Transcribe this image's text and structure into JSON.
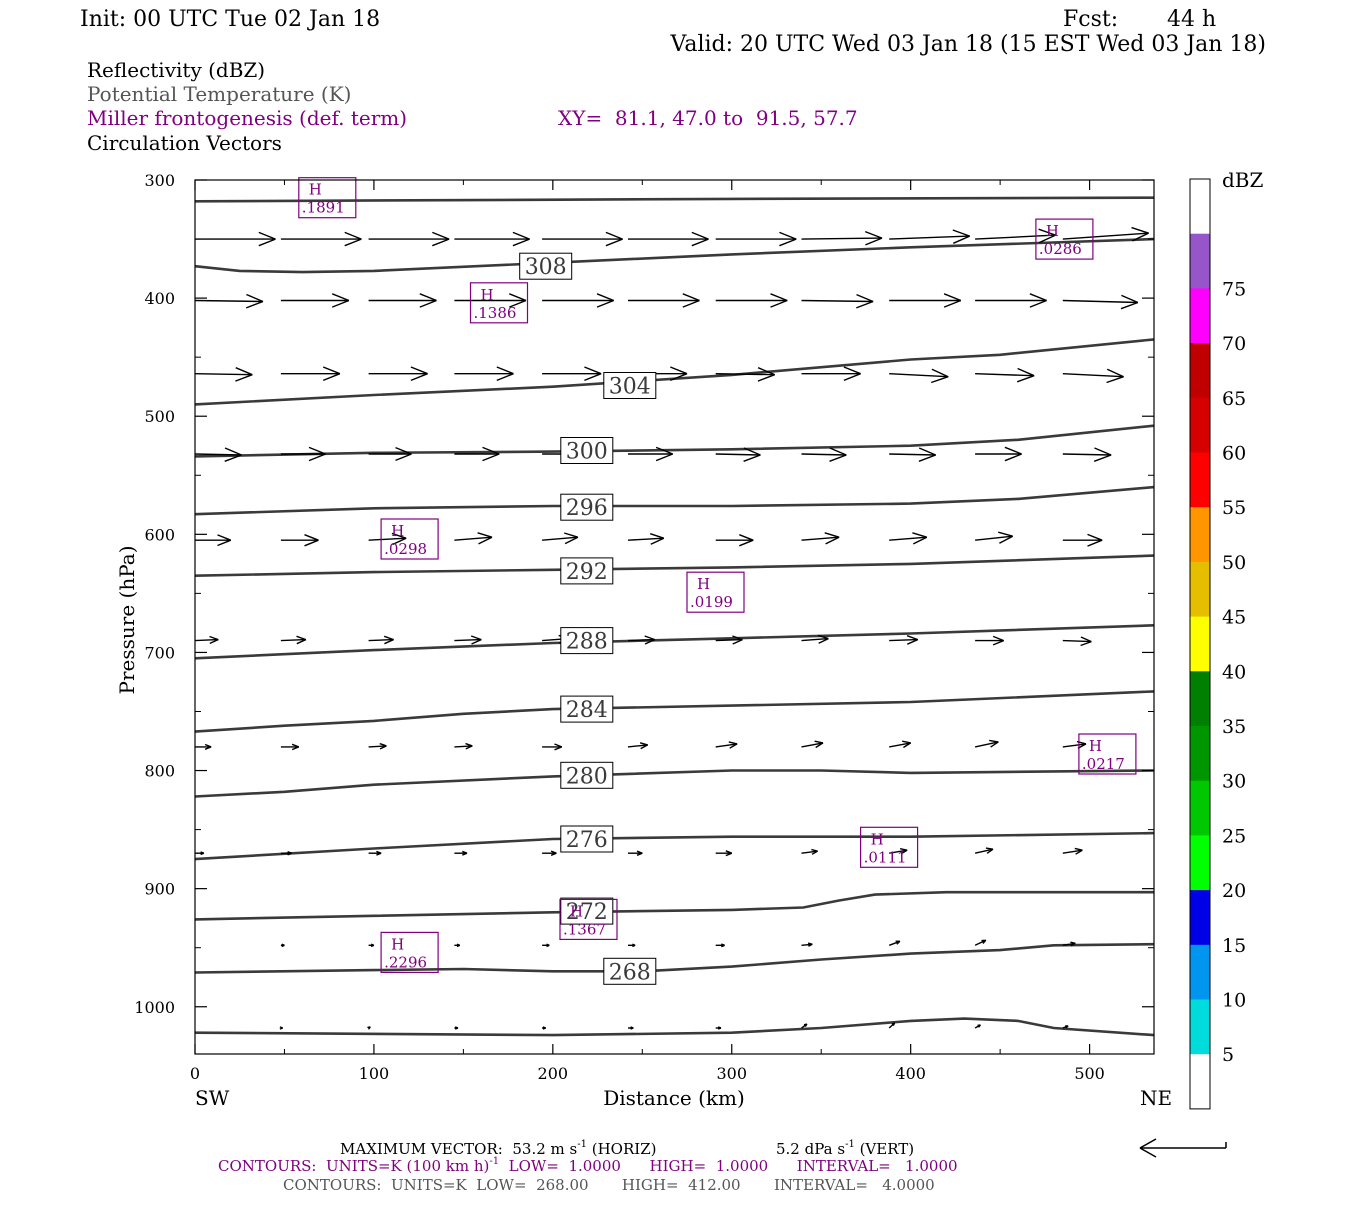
{
  "header": {
    "init": "Init: 00 UTC Tue 02 Jan 18",
    "fcst_label": "Fcst:",
    "fcst_value": "44 h",
    "valid": "Valid: 20 UTC Wed 03 Jan 18 (15 EST Wed 03 Jan 18)"
  },
  "fields": {
    "line1": "Reflectivity (dBZ)",
    "line2": "Potential Temperature (K)",
    "line3": "Miller frontogenesis (def. term)",
    "xy": "XY=  81.1, 47.0 to  91.5, 57.7",
    "line4": "Circulation Vectors"
  },
  "colors": {
    "purple": "#800080",
    "gray": "#555555",
    "theta": "#3a3a3a",
    "black": "#000000"
  },
  "chart_data": {
    "type": "cross-section",
    "xlabel": "Distance (km)",
    "ylabel": "Pressure (hPa)",
    "xlim": [
      0,
      536
    ],
    "ylim": [
      300,
      1040
    ],
    "y_scale": "linear, inverted (pressure increases downward)",
    "x_ticks": [
      0,
      100,
      200,
      300,
      400,
      500
    ],
    "y_ticks": [
      300,
      400,
      500,
      600,
      700,
      800,
      900,
      1000
    ],
    "x_end_labels": {
      "left": "SW",
      "right": "NE"
    },
    "theta_contours": [
      {
        "level": null,
        "points": [
          [
            0,
            318
          ],
          [
            300,
            316
          ],
          [
            536,
            315
          ]
        ]
      },
      {
        "level": "308",
        "points": [
          [
            0,
            373
          ],
          [
            25,
            377
          ],
          [
            60,
            378
          ],
          [
            100,
            377
          ],
          [
            200,
            370
          ],
          [
            300,
            363
          ],
          [
            400,
            357
          ],
          [
            536,
            350
          ]
        ]
      },
      {
        "level": "304",
        "points": [
          [
            0,
            490
          ],
          [
            100,
            482
          ],
          [
            200,
            475
          ],
          [
            300,
            465
          ],
          [
            400,
            452
          ],
          [
            450,
            448
          ],
          [
            536,
            435
          ]
        ]
      },
      {
        "level": "300",
        "points": [
          [
            0,
            534
          ],
          [
            100,
            531
          ],
          [
            200,
            530
          ],
          [
            300,
            528
          ],
          [
            400,
            525
          ],
          [
            460,
            520
          ],
          [
            536,
            508
          ]
        ]
      },
      {
        "level": "296",
        "points": [
          [
            0,
            583
          ],
          [
            100,
            578
          ],
          [
            200,
            576
          ],
          [
            300,
            576
          ],
          [
            400,
            574
          ],
          [
            460,
            570
          ],
          [
            536,
            560
          ]
        ]
      },
      {
        "level": "292",
        "points": [
          [
            0,
            635
          ],
          [
            100,
            632
          ],
          [
            200,
            630
          ],
          [
            300,
            628
          ],
          [
            400,
            625
          ],
          [
            536,
            618
          ]
        ]
      },
      {
        "level": "288",
        "points": [
          [
            0,
            705
          ],
          [
            100,
            698
          ],
          [
            200,
            692
          ],
          [
            300,
            688
          ],
          [
            400,
            684
          ],
          [
            536,
            677
          ]
        ]
      },
      {
        "level": "284",
        "points": [
          [
            0,
            767
          ],
          [
            50,
            762
          ],
          [
            100,
            758
          ],
          [
            150,
            752
          ],
          [
            200,
            748
          ],
          [
            300,
            745
          ],
          [
            400,
            742
          ],
          [
            536,
            733
          ]
        ]
      },
      {
        "level": "280",
        "points": [
          [
            0,
            822
          ],
          [
            50,
            818
          ],
          [
            100,
            812
          ],
          [
            200,
            805
          ],
          [
            300,
            800
          ],
          [
            350,
            800
          ],
          [
            400,
            802
          ],
          [
            536,
            800
          ]
        ]
      },
      {
        "level": "276",
        "points": [
          [
            0,
            875
          ],
          [
            100,
            866
          ],
          [
            200,
            858
          ],
          [
            300,
            856
          ],
          [
            400,
            856
          ],
          [
            536,
            853
          ]
        ]
      },
      {
        "level": "272",
        "points": [
          [
            0,
            926
          ],
          [
            100,
            923
          ],
          [
            200,
            920
          ],
          [
            300,
            918
          ],
          [
            340,
            916
          ],
          [
            360,
            910
          ],
          [
            380,
            905
          ],
          [
            420,
            903
          ],
          [
            536,
            903
          ]
        ]
      },
      {
        "level": "268",
        "points": [
          [
            0,
            971
          ],
          [
            100,
            969
          ],
          [
            150,
            968
          ],
          [
            200,
            970
          ],
          [
            250,
            970
          ],
          [
            300,
            966
          ],
          [
            350,
            960
          ],
          [
            400,
            955
          ],
          [
            450,
            952
          ],
          [
            480,
            948
          ],
          [
            536,
            947
          ]
        ]
      },
      {
        "level": null,
        "points": [
          [
            0,
            1022
          ],
          [
            200,
            1024
          ],
          [
            300,
            1022
          ],
          [
            350,
            1018
          ],
          [
            400,
            1012
          ],
          [
            430,
            1010
          ],
          [
            460,
            1012
          ],
          [
            480,
            1018
          ],
          [
            536,
            1024
          ]
        ]
      }
    ],
    "theta_labels": [
      {
        "text": "308",
        "x": 196,
        "p": 373
      },
      {
        "text": "304",
        "x": 243,
        "p": 474
      },
      {
        "text": "300",
        "x": 219,
        "p": 529
      },
      {
        "text": "296",
        "x": 219,
        "p": 577
      },
      {
        "text": "292",
        "x": 219,
        "p": 631
      },
      {
        "text": "288",
        "x": 219,
        "p": 690
      },
      {
        "text": "284",
        "x": 219,
        "p": 748
      },
      {
        "text": "280",
        "x": 219,
        "p": 804
      },
      {
        "text": "276",
        "x": 219,
        "p": 858
      },
      {
        "text": "272",
        "x": 219,
        "p": 919
      },
      {
        "text": "268",
        "x": 243,
        "p": 970
      }
    ],
    "frontogenesis_maxima": [
      {
        "label": "H",
        "value": ".1891",
        "x": 58,
        "p": 315
      },
      {
        "label": "H",
        "value": ".0286",
        "x": 470,
        "p": 350
      },
      {
        "label": "H",
        "value": ".1386",
        "x": 154,
        "p": 404
      },
      {
        "label": "H",
        "value": ".0298",
        "x": 104,
        "p": 604
      },
      {
        "label": "H",
        "value": ".0199",
        "x": 275,
        "p": 649
      },
      {
        "label": "H",
        "value": ".0217",
        "x": 494,
        "p": 786
      },
      {
        "label": "H",
        "value": ".0111",
        "x": 372,
        "p": 865
      },
      {
        "label": "H",
        "value": ".1367",
        "x": 204,
        "p": 926
      },
      {
        "label": "H",
        "value": ".2296",
        "x": 104,
        "p": 954
      }
    ],
    "vector_levels": [
      {
        "p": 350,
        "x": [
          0,
          48,
          97,
          145,
          194,
          242,
          291,
          339,
          388,
          436,
          485
        ],
        "length_km": [
          45,
          45,
          45,
          42,
          45,
          45,
          45,
          45,
          45,
          45,
          48
        ],
        "tilt": [
          0,
          0,
          0,
          0,
          0,
          0,
          0,
          -1,
          -3,
          -4,
          -6
        ]
      },
      {
        "p": 402,
        "x": [
          0,
          48,
          97,
          145,
          194,
          242,
          291,
          339,
          388,
          436,
          485
        ],
        "length_km": [
          38,
          38,
          38,
          40,
          40,
          40,
          40,
          40,
          40,
          40,
          42
        ],
        "tilt": [
          1,
          0,
          0,
          0,
          0,
          0,
          0,
          1,
          0,
          0,
          2
        ]
      },
      {
        "p": 464,
        "x": [
          0,
          48,
          97,
          145,
          194,
          242,
          291,
          339,
          388,
          436,
          485
        ],
        "length_km": [
          32,
          33,
          33,
          33,
          33,
          33,
          33,
          33,
          33,
          33,
          34
        ],
        "tilt": [
          1,
          0,
          0,
          0,
          0,
          0,
          1,
          0,
          3,
          2,
          3
        ]
      },
      {
        "p": 532,
        "x": [
          0,
          48,
          97,
          145,
          194,
          242,
          291,
          339,
          388,
          436,
          485
        ],
        "length_km": [
          26,
          25,
          24,
          25,
          25,
          25,
          25,
          25,
          26,
          26,
          27
        ],
        "tilt": [
          1,
          0,
          0,
          0,
          0,
          0,
          1,
          1,
          1,
          0,
          1
        ]
      },
      {
        "p": 605,
        "x": [
          0,
          48,
          97,
          145,
          194,
          242,
          291,
          339,
          388,
          436,
          485
        ],
        "length_km": [
          20,
          21,
          21,
          21,
          20,
          20,
          21,
          21,
          21,
          21,
          22
        ],
        "tilt": [
          0,
          0,
          -2,
          -3,
          -3,
          -2,
          0,
          -3,
          -3,
          -4,
          0
        ]
      },
      {
        "p": 690,
        "x": [
          0,
          48,
          97,
          145,
          194,
          242,
          291,
          339,
          388,
          436,
          485
        ],
        "length_km": [
          13,
          14,
          14,
          15,
          15,
          15,
          15,
          15,
          16,
          16,
          16
        ],
        "tilt": [
          -1,
          -1,
          -1,
          -1,
          -2,
          -1,
          -1,
          -2,
          -1,
          0,
          1
        ]
      },
      {
        "p": 780,
        "x": [
          0,
          48,
          97,
          145,
          194,
          242,
          291,
          339,
          388,
          436,
          485
        ],
        "length_km": [
          9,
          10,
          10,
          10,
          11,
          11,
          12,
          12,
          12,
          13,
          13
        ],
        "tilt": [
          0,
          0,
          -1,
          -1,
          0,
          -2,
          -3,
          -4,
          -4,
          -5,
          -3
        ]
      },
      {
        "p": 870,
        "x": [
          0,
          48,
          97,
          145,
          194,
          242,
          291,
          339,
          388,
          436,
          485
        ],
        "length_km": [
          5,
          6,
          7,
          7,
          8,
          8,
          9,
          9,
          10,
          10,
          11
        ],
        "tilt": [
          0,
          0,
          0,
          0,
          0,
          0,
          0,
          -2,
          -3,
          -4,
          -3
        ]
      },
      {
        "p": 948,
        "x": [
          48,
          97,
          145,
          194,
          242,
          291,
          339,
          388,
          436,
          485
        ],
        "length_km": [
          2,
          3,
          3,
          4,
          4,
          5,
          6,
          6,
          6,
          7
        ],
        "tilt": [
          0,
          0,
          0,
          0,
          0,
          0,
          -1,
          -4,
          -5,
          -2
        ]
      },
      {
        "p": 1018,
        "x": [
          48,
          97,
          145,
          194,
          242,
          291,
          339,
          388,
          436,
          485
        ],
        "length_km": [
          1,
          1,
          2,
          2,
          3,
          3,
          3,
          3,
          3,
          3
        ],
        "tilt": [
          0,
          -1,
          0,
          0,
          0,
          0,
          -4,
          -5,
          -3,
          -2
        ]
      }
    ],
    "colorbar": {
      "unit": "dBZ",
      "labels": [
        "5",
        "10",
        "15",
        "20",
        "25",
        "30",
        "35",
        "40",
        "45",
        "50",
        "55",
        "60",
        "65",
        "70",
        "75"
      ],
      "colors": [
        "#ffffff",
        "#00dcdc",
        "#0096f0",
        "#0000e6",
        "#00ff00",
        "#00c800",
        "#009600",
        "#008000",
        "#ffff00",
        "#e6be00",
        "#ff9600",
        "#ff0000",
        "#d70000",
        "#c00000",
        "#ff00ff",
        "#9655c8",
        "#ffffff"
      ]
    },
    "footer": {
      "max_vector": "MAXIMUM VECTOR:  53.2 m s",
      "max_vector_exp": "-1",
      "horiz": " (HORIZ)",
      "vert_value": "5.2 dPa s",
      "vert_exp": "-1",
      "vert_label": " (VERT)",
      "contours1_a": "CONTOURS:  UNITS=K (100 km h)",
      "contours1_exp": "-1",
      "contours1_b": "  LOW=  1.0000      HIGH=  1.0000      INTERVAL=   1.0000",
      "contours2": "CONTOURS:  UNITS=K  LOW=  268.00       HIGH=  412.00       INTERVAL=   4.0000"
    }
  }
}
